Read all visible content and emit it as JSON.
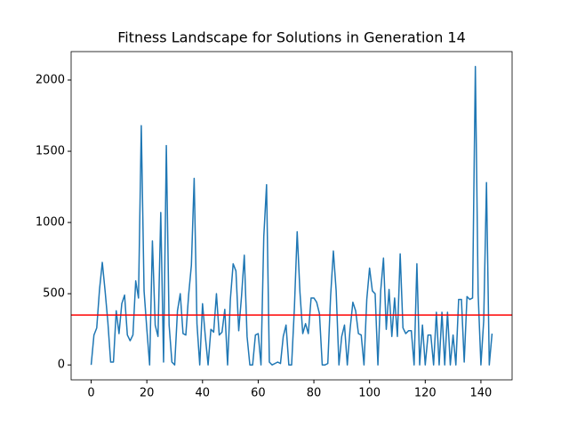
{
  "chart_data": {
    "type": "line",
    "title": "Fitness Landscape for Solutions in Generation 14",
    "x": [
      0,
      1,
      2,
      3,
      4,
      5,
      6,
      7,
      8,
      9,
      10,
      11,
      12,
      13,
      14,
      15,
      16,
      17,
      18,
      19,
      20,
      21,
      22,
      23,
      24,
      25,
      26,
      27,
      28,
      29,
      30,
      31,
      32,
      33,
      34,
      35,
      36,
      37,
      38,
      39,
      40,
      41,
      42,
      43,
      44,
      45,
      46,
      47,
      48,
      49,
      50,
      51,
      52,
      53,
      54,
      55,
      56,
      57,
      58,
      59,
      60,
      61,
      62,
      63,
      64,
      65,
      66,
      67,
      68,
      69,
      70,
      71,
      72,
      73,
      74,
      75,
      76,
      77,
      78,
      79,
      80,
      81,
      82,
      83,
      84,
      85,
      86,
      87,
      88,
      89,
      90,
      91,
      92,
      93,
      94,
      95,
      96,
      97,
      98,
      99,
      100,
      101,
      102,
      103,
      104,
      105,
      106,
      107,
      108,
      109,
      110,
      111,
      112,
      113,
      114,
      115,
      116,
      117,
      118,
      119,
      120,
      121,
      122,
      123,
      124,
      125,
      126,
      127,
      128,
      129,
      130,
      131,
      132,
      133,
      134,
      135,
      136,
      137,
      138,
      139,
      140,
      141,
      142,
      143,
      144
    ],
    "series": [
      {
        "color": "#1f77b4",
        "values": [
          0,
          210,
          260,
          530,
          720,
          520,
          300,
          20,
          20,
          380,
          220,
          430,
          490,
          210,
          170,
          210,
          590,
          470,
          1680,
          520,
          250,
          0,
          870,
          280,
          200,
          1070,
          20,
          1540,
          280,
          20,
          0,
          380,
          500,
          220,
          210,
          490,
          700,
          1310,
          290,
          0,
          430,
          200,
          0,
          250,
          230,
          500,
          210,
          230,
          390,
          0,
          460,
          710,
          660,
          240,
          480,
          770,
          200,
          0,
          0,
          210,
          220,
          0,
          900,
          1265,
          20,
          0,
          10,
          20,
          10,
          200,
          280,
          0,
          0,
          400,
          935,
          510,
          220,
          290,
          220,
          470,
          470,
          440,
          360,
          0,
          0,
          10,
          480,
          800,
          520,
          0,
          200,
          280,
          0,
          250,
          440,
          380,
          220,
          210,
          0,
          460,
          680,
          520,
          500,
          0,
          520,
          750,
          250,
          530,
          200,
          470,
          200,
          780,
          260,
          220,
          240,
          240,
          0,
          710,
          0,
          280,
          0,
          210,
          210,
          0,
          370,
          0,
          370,
          0,
          370,
          0,
          210,
          0,
          460,
          460,
          20,
          480,
          460,
          470,
          2095,
          500,
          0,
          310,
          1280,
          0,
          220
        ]
      }
    ],
    "hline": {
      "value": 350,
      "color": "#ff0000"
    },
    "xlim": [
      -7.2,
      151.2
    ],
    "ylim": [
      -104.75,
      2199.75
    ],
    "xticks": [
      0,
      20,
      40,
      60,
      80,
      100,
      120,
      140
    ],
    "yticks": [
      0,
      500,
      1000,
      1500,
      2000
    ]
  }
}
